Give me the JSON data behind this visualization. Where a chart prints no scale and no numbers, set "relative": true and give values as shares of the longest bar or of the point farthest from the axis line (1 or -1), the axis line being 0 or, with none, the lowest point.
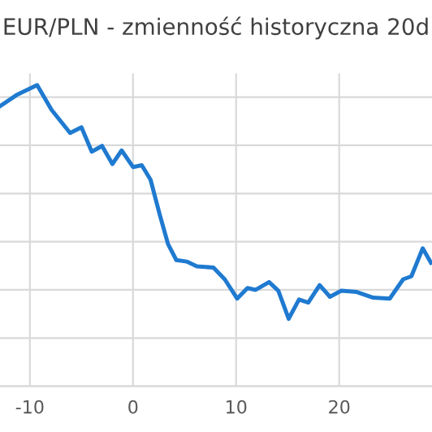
{
  "chart_data": {
    "type": "line",
    "title": "EUR/PLN - zmienność historyczna 20d",
    "relative": true,
    "xlim": [
      -12.9,
      29
    ],
    "xticks": [
      -10,
      0,
      10,
      20
    ],
    "grid": true,
    "line_style": "solid",
    "series": [
      {
        "color": "#1f7ad0",
        "x": [
          -12.9,
          -11.3,
          -9.3,
          -7.9,
          -6.1,
          -5.0,
          -4.0,
          -3.0,
          -2.0,
          -1.1,
          0,
          0.85,
          1.7,
          2.6,
          3.4,
          4.2,
          5.2,
          6.2,
          7.8,
          8.9,
          10.1,
          11.1,
          11.9,
          13.2,
          14.1,
          15.1,
          16.1,
          17.0,
          18.1,
          19.1,
          20.2,
          21.7,
          23.3,
          24.9,
          26.2,
          27.0,
          28.1,
          28.9
        ],
        "values": [
          0.93,
          0.967,
          1.0,
          0.918,
          0.841,
          0.86,
          0.779,
          0.798,
          0.738,
          0.783,
          0.728,
          0.734,
          0.686,
          0.569,
          0.472,
          0.419,
          0.414,
          0.398,
          0.394,
          0.355,
          0.291,
          0.326,
          0.32,
          0.346,
          0.317,
          0.224,
          0.288,
          0.278,
          0.336,
          0.297,
          0.317,
          0.313,
          0.294,
          0.291,
          0.355,
          0.365,
          0.458,
          0.41
        ]
      }
    ]
  }
}
